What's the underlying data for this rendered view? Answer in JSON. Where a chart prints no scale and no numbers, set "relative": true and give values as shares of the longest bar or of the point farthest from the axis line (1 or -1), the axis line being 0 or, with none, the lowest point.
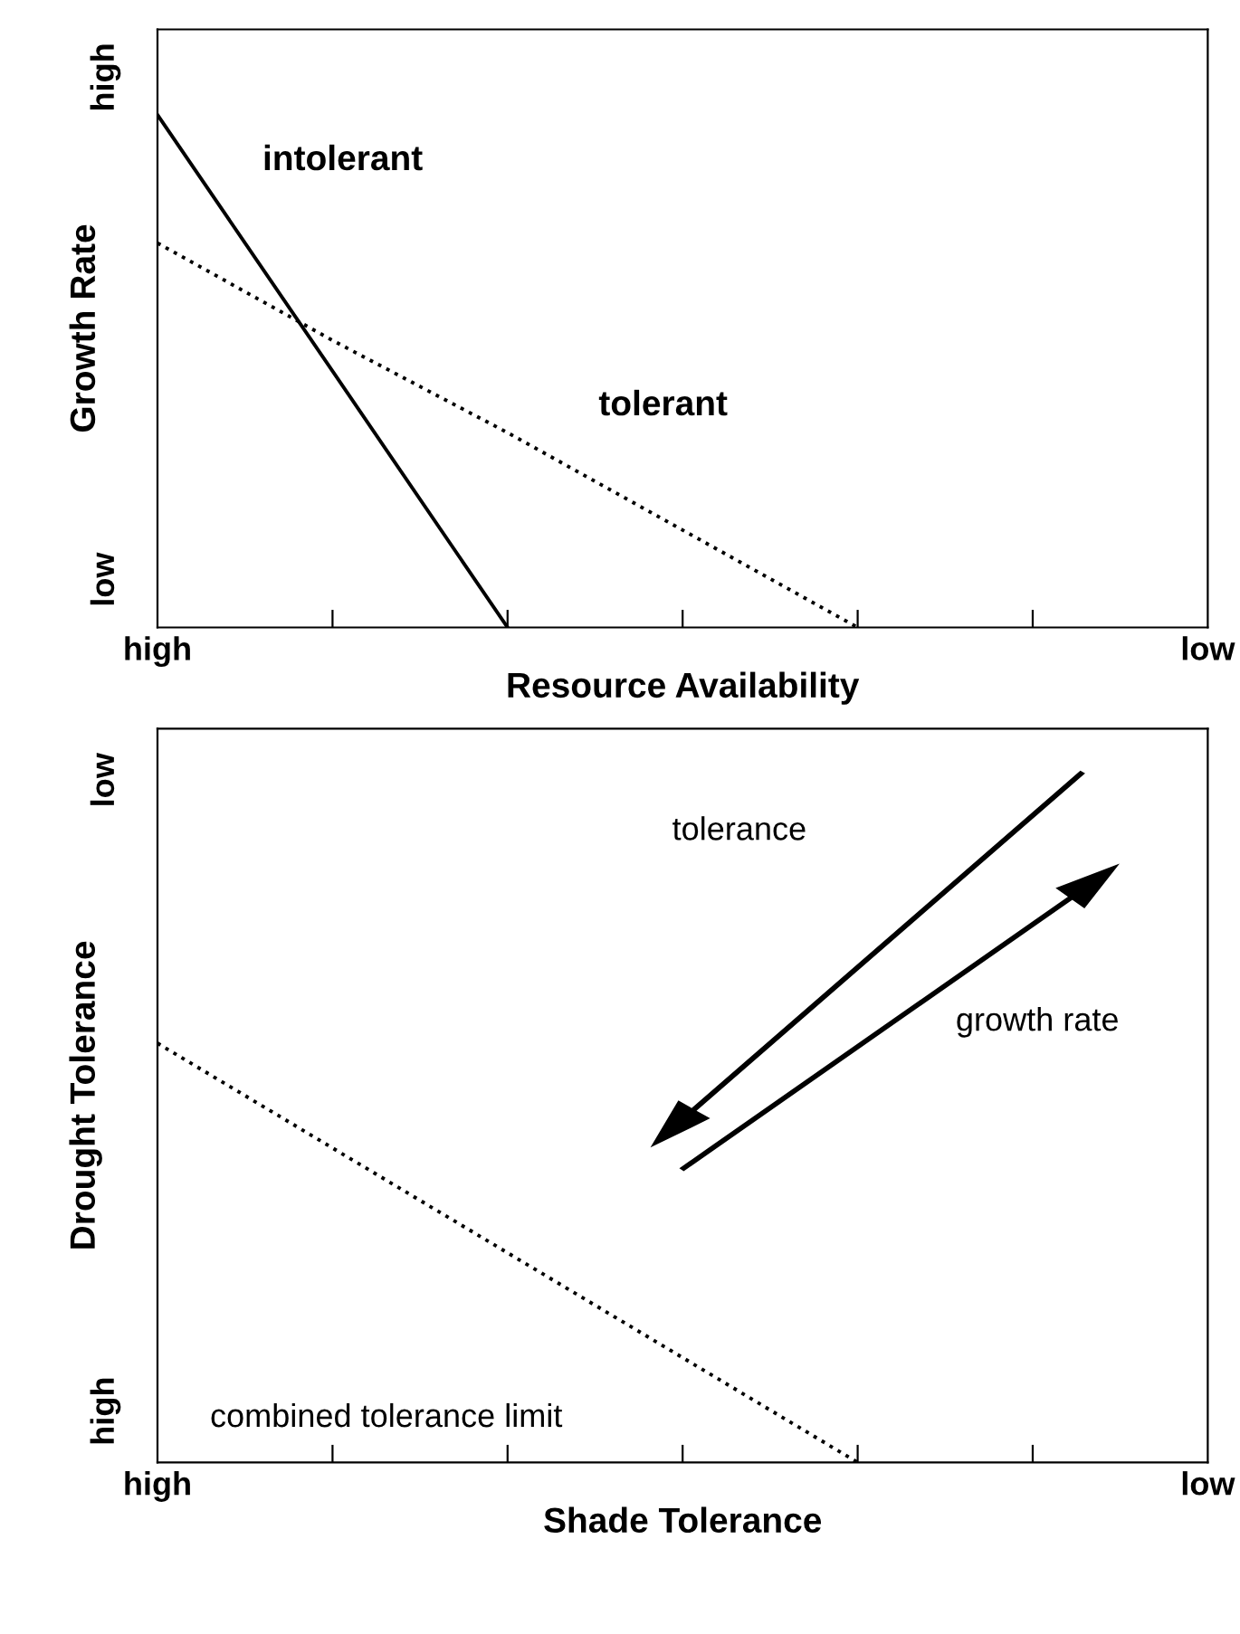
{
  "chart_data": [
    {
      "type": "line",
      "relative": true,
      "ylabel": "Growth Rate",
      "xlabel": "Resource Availability",
      "categories": [
        "high",
        null,
        null,
        null,
        null,
        null,
        "low"
      ],
      "series": [
        {
          "color": "#000000",
          "line_style": "solid",
          "values": [
            1,
            0.5,
            0,
            null,
            null,
            null,
            null
          ]
        },
        {
          "color": "#000000",
          "line_style": "dotted",
          "values": [
            0.75,
            0.56,
            0.38,
            0.19,
            0,
            null,
            null
          ]
        }
      ],
      "annotations": [
        "intolerant",
        "tolerant",
        "high",
        "low"
      ],
      "grid": false,
      "legend": false,
      "marker": "none"
    },
    {
      "type": "line",
      "relative": true,
      "ylabel": "Drought Tolerance",
      "xlabel": "Shade Tolerance",
      "categories": [
        "high",
        null,
        null,
        null,
        null,
        null,
        "low"
      ],
      "series": [
        {
          "color": "#000000",
          "line_style": "dotted",
          "values": [
            1,
            0.75,
            0.5,
            0.25,
            0,
            null,
            null
          ]
        }
      ],
      "annotations": [
        "combined tolerance limit",
        "tolerance",
        "growth rate",
        "low",
        "high"
      ],
      "grid": false,
      "legend": false,
      "marker": "none"
    }
  ]
}
